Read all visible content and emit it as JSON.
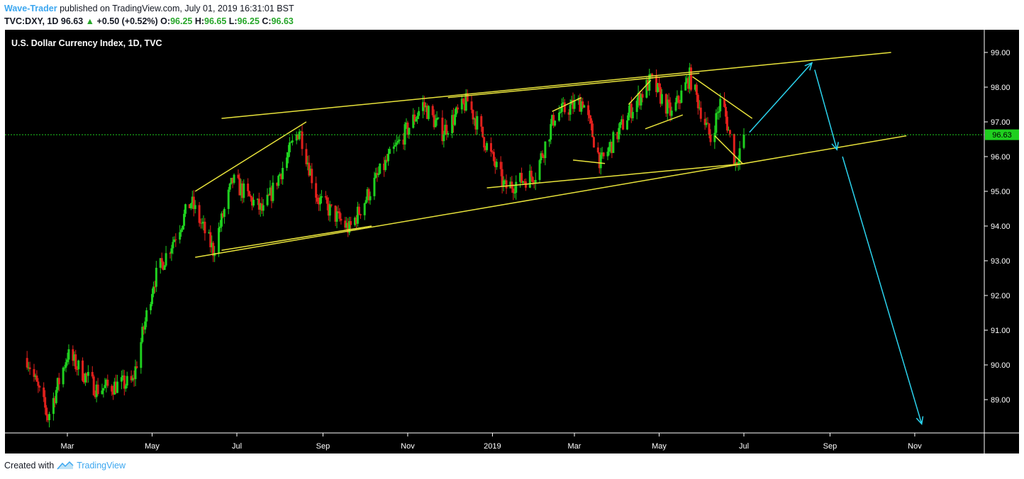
{
  "header": {
    "author": "Wave-Trader",
    "published_text": "published on TradingView.com, July 01, 2019 16:31:01 BST",
    "symbol": "TVC:DXY, 1D",
    "last": "96.63",
    "change": "+0.50 (+0.52%)",
    "o_label": "O:",
    "o_value": "96.25",
    "h_label": "H:",
    "h_value": "96.65",
    "l_label": "L:",
    "l_value": "96.25",
    "c_label": "C:",
    "c_value": "96.63"
  },
  "footer": {
    "created_with": "Created with",
    "brand": "TradingView"
  },
  "colors": {
    "background": "#000000",
    "up": "#1fcf1f",
    "down": "#e0201c",
    "trendline": "#e8e33b",
    "arrow": "#2bd3ee",
    "price_line": "#1fcf1f",
    "last_price_badge": "#1fcf1f"
  },
  "chart_data": {
    "type": "candlestick",
    "title": "U.S. Dollar Currency Index, 1D, TVC",
    "x_ticks": [
      "Mar",
      "May",
      "Jul",
      "Sep",
      "Nov",
      "2019",
      "Mar",
      "May",
      "Jul",
      "Sep",
      "Nov"
    ],
    "y_ticks": [
      "89.00",
      "90.00",
      "91.00",
      "92.00",
      "93.00",
      "94.00",
      "95.00",
      "96.00",
      "97.00",
      "98.00",
      "99.00"
    ],
    "ylim": [
      88.0,
      99.6
    ],
    "last_price": "96.63",
    "price_path": [
      [
        "2018-01-31",
        90.2
      ],
      [
        "2018-02-15",
        88.5
      ],
      [
        "2018-03-01",
        90.3
      ],
      [
        "2018-03-22",
        89.3
      ],
      [
        "2018-04-17",
        89.5
      ],
      [
        "2018-05-02",
        92.4
      ],
      [
        "2018-05-15",
        93.5
      ],
      [
        "2018-05-29",
        94.7
      ],
      [
        "2018-06-14",
        93.3
      ],
      [
        "2018-06-28",
        95.3
      ],
      [
        "2018-07-20",
        94.4
      ],
      [
        "2018-08-15",
        96.8
      ],
      [
        "2018-08-28",
        94.8
      ],
      [
        "2018-09-20",
        93.9
      ],
      [
        "2018-10-10",
        95.4
      ],
      [
        "2018-11-12",
        97.5
      ],
      [
        "2018-11-26",
        96.7
      ],
      [
        "2018-12-14",
        97.6
      ],
      [
        "2019-01-10",
        95.1
      ],
      [
        "2019-02-01",
        95.5
      ],
      [
        "2019-02-15",
        97.2
      ],
      [
        "2019-03-07",
        97.6
      ],
      [
        "2019-03-20",
        95.8
      ],
      [
        "2019-04-10",
        97.3
      ],
      [
        "2019-04-25",
        98.2
      ],
      [
        "2019-05-10",
        97.2
      ],
      [
        "2019-05-23",
        98.3
      ],
      [
        "2019-06-07",
        96.5
      ],
      [
        "2019-06-15",
        97.7
      ],
      [
        "2019-06-25",
        95.8
      ],
      [
        "2019-07-01",
        96.63
      ]
    ],
    "trendlines": [
      [
        [
          "2018-06-01",
          93.1
        ],
        [
          "2019-10-26",
          96.6
        ]
      ],
      [
        [
          "2018-06-20",
          97.1
        ],
        [
          "2019-10-15",
          99.0
        ]
      ],
      [
        [
          "2018-06-20",
          93.3
        ],
        [
          "2018-10-06",
          94.0
        ]
      ],
      [
        [
          "2018-06-01",
          95.0
        ],
        [
          "2018-08-20",
          97.0
        ]
      ],
      [
        [
          "2018-11-30",
          97.7
        ],
        [
          "2019-05-30",
          98.4
        ]
      ],
      [
        [
          "2018-12-28",
          95.1
        ],
        [
          "2019-07-02",
          95.8
        ]
      ],
      [
        [
          "2019-02-13",
          97.3
        ],
        [
          "2019-03-06",
          97.7
        ]
      ],
      [
        [
          "2019-02-28",
          95.9
        ],
        [
          "2019-03-23",
          95.8
        ]
      ],
      [
        [
          "2019-04-09",
          97.5
        ],
        [
          "2019-04-25",
          98.2
        ]
      ],
      [
        [
          "2019-04-21",
          96.8
        ],
        [
          "2019-05-18",
          97.2
        ]
      ],
      [
        [
          "2019-05-25",
          98.3
        ],
        [
          "2019-07-07",
          97.1
        ]
      ],
      [
        [
          "2019-06-10",
          96.6
        ],
        [
          "2019-06-30",
          95.8
        ]
      ]
    ],
    "projection_arrows": [
      [
        [
          "2019-07-05",
          96.7
        ],
        [
          "2019-08-19",
          98.7
        ]
      ],
      [
        [
          "2019-08-21",
          98.5
        ],
        [
          "2019-09-06",
          96.2
        ]
      ],
      [
        [
          "2019-09-10",
          96.0
        ],
        [
          "2019-11-06",
          88.3
        ]
      ]
    ]
  }
}
